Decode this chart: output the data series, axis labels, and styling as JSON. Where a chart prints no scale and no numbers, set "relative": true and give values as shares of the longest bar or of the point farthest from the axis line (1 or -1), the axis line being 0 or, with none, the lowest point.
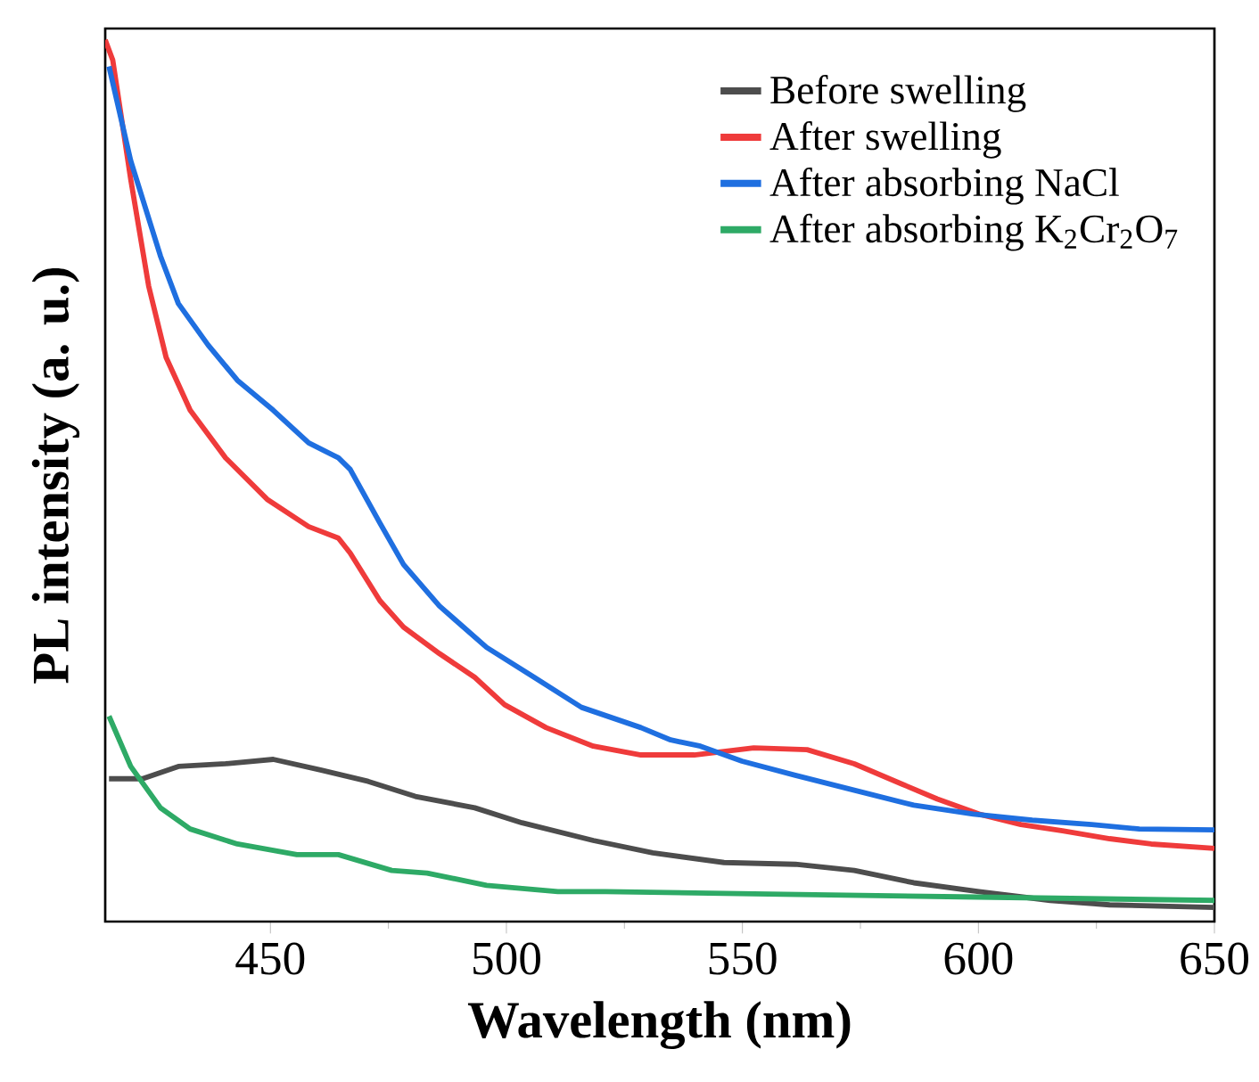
{
  "chart_data": {
    "type": "line",
    "relative": true,
    "xlabel": "Wavelength (nm)",
    "ylabel": "PL intensity (a. u.)",
    "xlim": [
      415,
      650
    ],
    "xticks": [
      450,
      500,
      550,
      600,
      650
    ],
    "legend": "top right",
    "series": [
      {
        "name": "Before swelling",
        "color": "#4d4d4d",
        "x": [
          415.8,
          422.9,
          430.5,
          440.5,
          450.6,
          460.6,
          470.7,
          480.7,
          493.3,
          503.3,
          518.4,
          531,
          546.1,
          561.2,
          573.7,
          586.3,
          600.1,
          615.2,
          627.8,
          650
        ],
        "values": [
          0.162,
          0.162,
          0.176,
          0.179,
          0.184,
          0.172,
          0.159,
          0.142,
          0.129,
          0.112,
          0.092,
          0.078,
          0.067,
          0.065,
          0.058,
          0.044,
          0.034,
          0.024,
          0.019,
          0.016
        ]
      },
      {
        "name": "After swelling",
        "color": "#ef3b3b",
        "x": [
          415,
          416.6,
          420.4,
          424.2,
          427.9,
          433,
          440.5,
          449.3,
          458.1,
          464.4,
          466.9,
          473.2,
          478.2,
          485.8,
          493.3,
          499.6,
          508.4,
          518.4,
          528.5,
          539.8,
          552.4,
          563.7,
          573.7,
          583.8,
          591.3,
          600.1,
          609,
          617.8,
          627.8,
          636.6,
          650
        ],
        "values": [
          1.0,
          0.977,
          0.842,
          0.721,
          0.64,
          0.58,
          0.526,
          0.479,
          0.448,
          0.435,
          0.418,
          0.364,
          0.334,
          0.304,
          0.277,
          0.246,
          0.22,
          0.199,
          0.189,
          0.189,
          0.197,
          0.195,
          0.179,
          0.156,
          0.139,
          0.122,
          0.11,
          0.103,
          0.094,
          0.088,
          0.083
        ]
      },
      {
        "name": "After absorbing NaCl",
        "color": "#1f6fe0",
        "x": [
          415.8,
          420.4,
          426.7,
          430.5,
          436.8,
          443,
          450.6,
          458.1,
          464.4,
          466.9,
          473.2,
          478.2,
          485.8,
          495.8,
          505.9,
          515.9,
          528.5,
          534.8,
          541.1,
          549.9,
          561.2,
          573.7,
          586.3,
          598.9,
          611.4,
          624,
          634.1,
          650
        ],
        "values": [
          0.97,
          0.863,
          0.755,
          0.701,
          0.654,
          0.614,
          0.58,
          0.543,
          0.526,
          0.513,
          0.452,
          0.405,
          0.358,
          0.311,
          0.277,
          0.243,
          0.22,
          0.206,
          0.199,
          0.182,
          0.166,
          0.149,
          0.132,
          0.122,
          0.115,
          0.11,
          0.105,
          0.104
        ]
      },
      {
        "name": "After absorbing K$_{2}$Cr$_{2}$O$_{7}$",
        "color": "#2eaa66",
        "x": [
          415.8,
          420.4,
          426.7,
          433,
          443,
          455.6,
          464.4,
          475.7,
          483.2,
          495.8,
          510.9,
          521,
          558.7,
          596.4,
          650
        ],
        "values": [
          0.233,
          0.176,
          0.129,
          0.105,
          0.088,
          0.076,
          0.076,
          0.058,
          0.055,
          0.041,
          0.034,
          0.034,
          0.031,
          0.028,
          0.024
        ]
      }
    ]
  }
}
